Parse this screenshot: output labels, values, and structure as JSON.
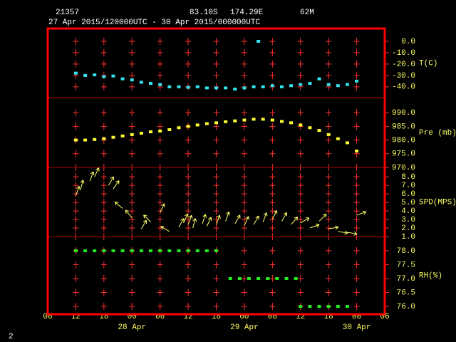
{
  "header": {
    "station": "21357",
    "lat": "83.10S",
    "lon": "174.29E",
    "elevation": "62M",
    "period": "27 Apr 2015/120000UTC - 30 Apr 2015/000000UTC"
  },
  "footer": "2",
  "chart_data": [
    {
      "type": "scatter",
      "ylabel": "T(C)",
      "color": "#33e6f0",
      "x": [
        6,
        8,
        10,
        12,
        14,
        16,
        18,
        20,
        22,
        24,
        26,
        28,
        30,
        32,
        34,
        36,
        38,
        40,
        42,
        44,
        45,
        46,
        48,
        50,
        52,
        54,
        56,
        58,
        60,
        62,
        64,
        66
      ],
      "values": [
        -28,
        -30,
        -29.5,
        -31,
        -30.5,
        -33,
        -34,
        -36,
        -37,
        -38,
        -40,
        -40,
        -40.5,
        -40,
        -41,
        -41,
        -41,
        -42,
        -41,
        -40,
        0,
        -40,
        -39,
        -40,
        -39,
        -38,
        -37,
        -33,
        -38,
        -39,
        -38,
        -35
      ],
      "ylim": [
        -49.5,
        11.25
      ],
      "yticks": [
        {
          "value": 0,
          "label": "0.0"
        },
        {
          "value": -10,
          "label": "-10.0"
        },
        {
          "value": -20,
          "label": "-20.0"
        },
        {
          "value": -30,
          "label": "-30.0"
        },
        {
          "value": -40,
          "label": "-40.0"
        }
      ]
    },
    {
      "type": "scatter",
      "ylabel": "Pre (mb)",
      "color": "#ffff33",
      "x": [
        6,
        8,
        10,
        12,
        14,
        16,
        18,
        20,
        22,
        24,
        26,
        28,
        30,
        32,
        34,
        36,
        38,
        40,
        42,
        44,
        46,
        48,
        50,
        52,
        54,
        56,
        58,
        60,
        62,
        64,
        66
      ],
      "values": [
        980,
        980,
        980.2,
        980.5,
        981,
        981.5,
        982,
        982.5,
        983,
        983.3,
        983.8,
        984.5,
        985,
        985.5,
        986,
        986.3,
        986.7,
        987,
        987.3,
        987.6,
        987.6,
        987.3,
        986.8,
        986.3,
        985.5,
        984.5,
        983.5,
        982,
        980.5,
        979,
        976
      ],
      "ylim": [
        970,
        995.5
      ],
      "yticks": [
        {
          "value": 990,
          "label": "990.0"
        },
        {
          "value": 985,
          "label": "985.0"
        },
        {
          "value": 980,
          "label": "980.0"
        },
        {
          "value": 975,
          "label": "975.0"
        },
        {
          "value": 970,
          "label": "970.0"
        }
      ]
    },
    {
      "type": "vector",
      "ylabel": "SPD(MPS)",
      "color": "#ffff66",
      "x": [
        6,
        7,
        9,
        10,
        13,
        14,
        16,
        18,
        20,
        22,
        24,
        26,
        28,
        29,
        30,
        31,
        33,
        34,
        36,
        38,
        40,
        42,
        44,
        46,
        48,
        50,
        52,
        54,
        56,
        58,
        60,
        62,
        64,
        66
      ],
      "values": [
        5.8,
        6.5,
        7.5,
        8.0,
        7.0,
        6.6,
        4.3,
        3.2,
        1.9,
        2.7,
        3.8,
        1.6,
        2.1,
        2.6,
        2.4,
        2.0,
        2.5,
        2.2,
        2.4,
        2.8,
        2.5,
        2.3,
        2.4,
        2.7,
        3.0,
        2.8,
        2.4,
        2.6,
        2.0,
        2.8,
        1.9,
        1.6,
        1.5,
        3.5
      ],
      "directions": [
        20,
        15,
        20,
        25,
        30,
        35,
        -50,
        -40,
        30,
        -45,
        25,
        -60,
        30,
        25,
        20,
        15,
        20,
        25,
        20,
        20,
        30,
        25,
        30,
        20,
        25,
        30,
        40,
        60,
        70,
        45,
        80,
        100,
        100,
        70
      ],
      "ylim": [
        1,
        9.1
      ],
      "yticks": [
        {
          "value": 8,
          "label": "8.0"
        },
        {
          "value": 7,
          "label": "7.0"
        },
        {
          "value": 6,
          "label": "6.0"
        },
        {
          "value": 5,
          "label": "5.0"
        },
        {
          "value": 4,
          "label": "4.0"
        },
        {
          "value": 3,
          "label": "3.0"
        },
        {
          "value": 2,
          "label": "2.0"
        },
        {
          "value": 1,
          "label": "1.0"
        }
      ]
    },
    {
      "type": "scatter",
      "ylabel": "RH(%)",
      "color": "#22ee22",
      "x": [
        6,
        8,
        10,
        12,
        14,
        16,
        18,
        20,
        22,
        24,
        26,
        28,
        30,
        32,
        34,
        36,
        39,
        41,
        43,
        45,
        47,
        49,
        51,
        53,
        54,
        56,
        58,
        60,
        62,
        64
      ],
      "values": [
        78,
        78,
        78,
        78,
        78,
        78,
        78,
        78,
        78,
        78,
        78,
        78,
        78,
        78,
        78,
        78,
        77,
        77,
        77,
        77,
        77,
        77,
        77,
        77,
        76,
        76,
        76,
        76,
        76,
        76
      ],
      "ylim": [
        75.72,
        78.51
      ],
      "yticks": [
        {
          "value": 78,
          "label": "78.0"
        },
        {
          "value": 77.5,
          "label": "77.5"
        },
        {
          "value": 77,
          "label": "77.0"
        },
        {
          "value": 76.5,
          "label": "76.5"
        },
        {
          "value": 76,
          "label": "76.0"
        }
      ],
      "xlim": [
        0,
        72
      ],
      "xticks": [
        {
          "value": 0,
          "label": "06"
        },
        {
          "value": 6,
          "label": "12"
        },
        {
          "value": 12,
          "label": "18"
        },
        {
          "value": 18,
          "label": "00"
        },
        {
          "value": 24,
          "label": "06"
        },
        {
          "value": 30,
          "label": "12"
        },
        {
          "value": 36,
          "label": "18"
        },
        {
          "value": 42,
          "label": "00"
        },
        {
          "value": 48,
          "label": "06"
        },
        {
          "value": 54,
          "label": "12"
        },
        {
          "value": 60,
          "label": "18"
        },
        {
          "value": 66,
          "label": "00"
        },
        {
          "value": 72,
          "label": "06"
        }
      ],
      "date_labels": [
        {
          "value": 18,
          "label": "28 Apr"
        },
        {
          "value": 42,
          "label": "29 Apr"
        },
        {
          "value": 66,
          "label": "30 Apr"
        }
      ]
    }
  ]
}
